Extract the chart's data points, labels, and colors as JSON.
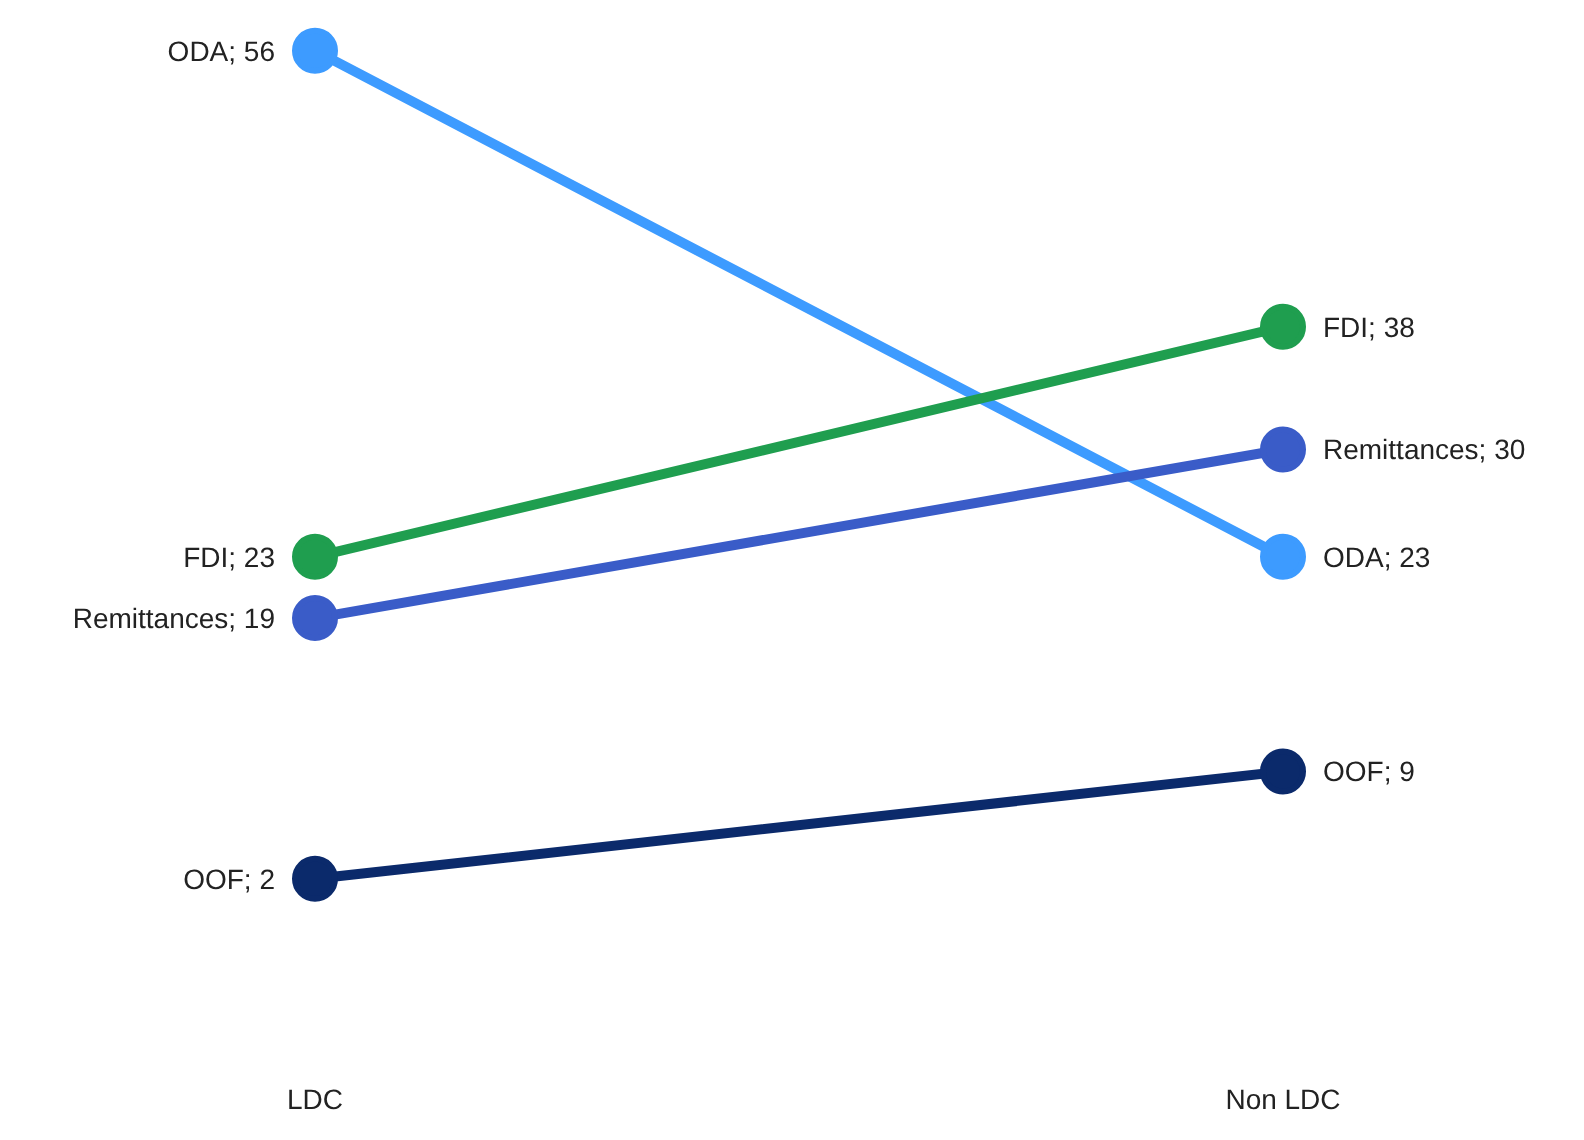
{
  "chart_data": {
    "type": "line",
    "categories": [
      "LDC",
      "Non LDC"
    ],
    "series": [
      {
        "color": "#3d9bff",
        "values": [
          56,
          23
        ],
        "value_labels": [
          "ODA; 56",
          "ODA; 23"
        ]
      },
      {
        "color": "#1f9e4f",
        "values": [
          23,
          38
        ],
        "value_labels": [
          "FDI; 23",
          "FDI; 38"
        ]
      },
      {
        "color": "#3a5cc8",
        "values": [
          19,
          30
        ],
        "value_labels": [
          "Remittances; 19",
          "Remittances; 30"
        ]
      },
      {
        "color": "#0b2a6b",
        "values": [
          2,
          9
        ],
        "value_labels": [
          "OOF; 2",
          "OOF; 9"
        ]
      }
    ],
    "marker": "circle"
  }
}
